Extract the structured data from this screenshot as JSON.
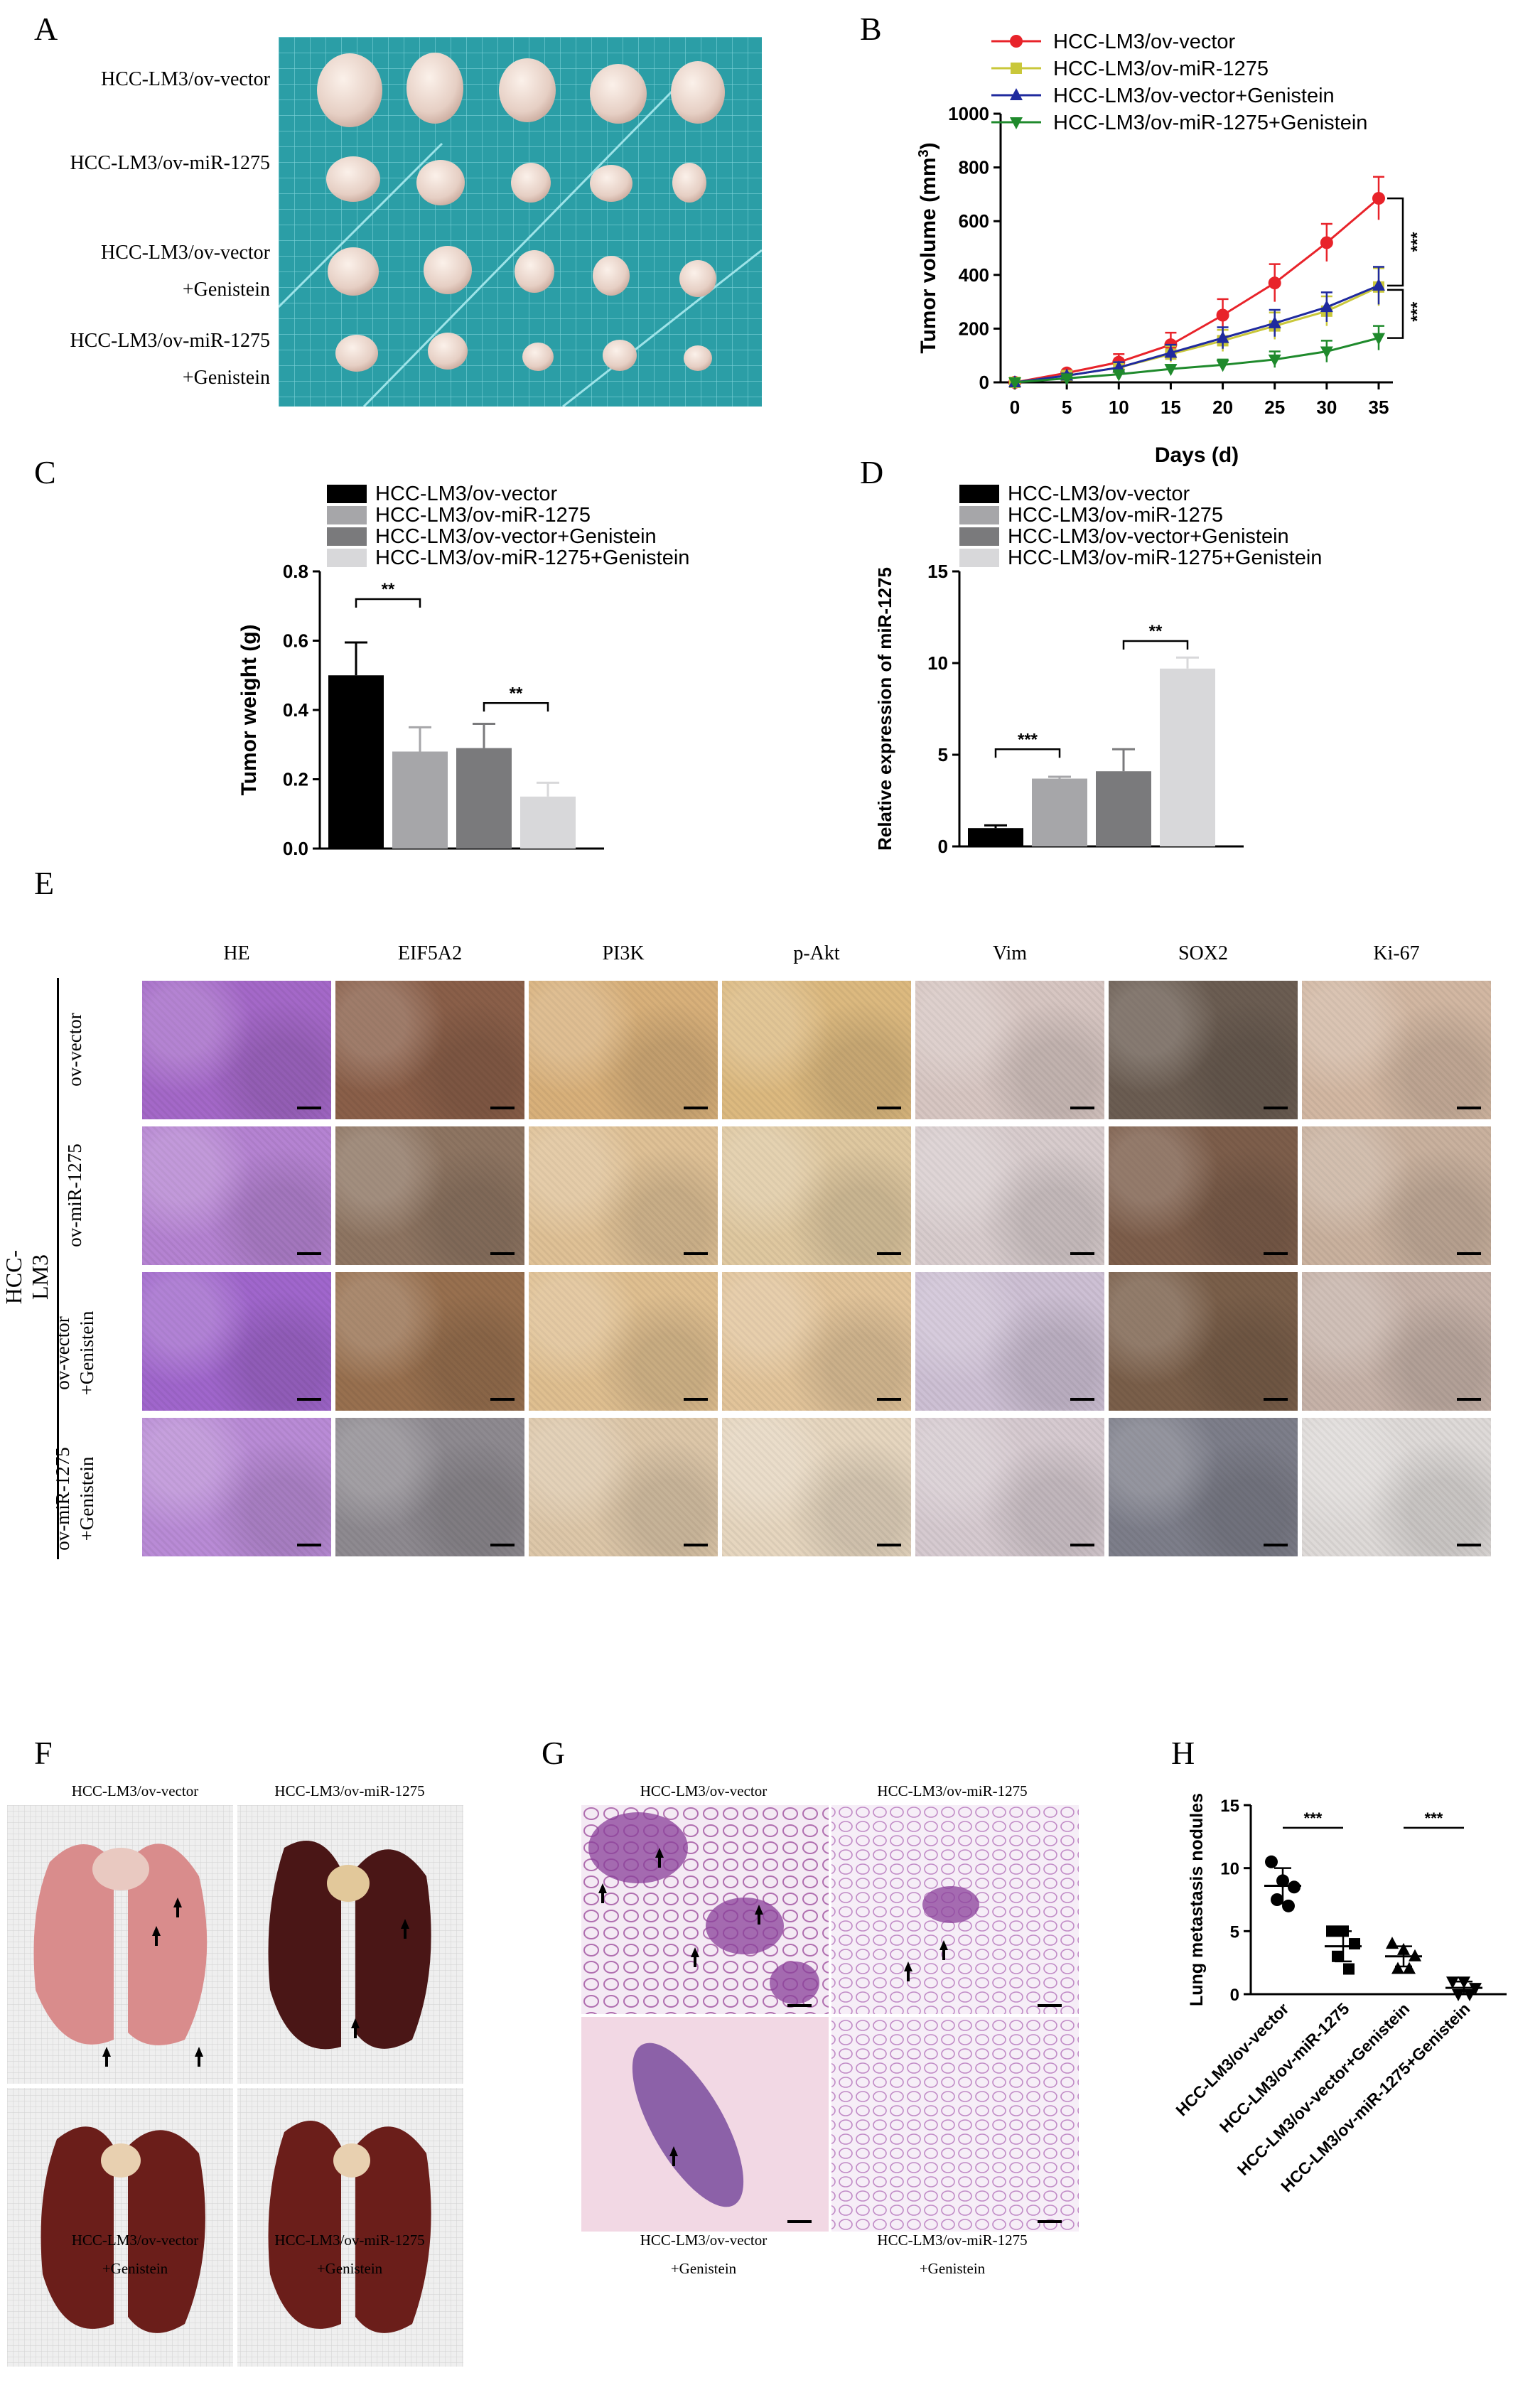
{
  "panels": {
    "A": "A",
    "B": "B",
    "C": "C",
    "D": "D",
    "E": "E",
    "F": "F",
    "G": "G",
    "H": "H"
  },
  "panelA": {
    "labels": [
      "HCC-LM3/ov-vector",
      "HCC-LM3/ov-miR-1275",
      "HCC-LM3/ov-vector",
      "+Genistein",
      "HCC-LM3/ov-miR-1275",
      "+Genistein"
    ]
  },
  "colors": {
    "vector": "#e8232a",
    "mir": "#c9c73a",
    "vector_gen": "#1f2a9e",
    "mir_gen": "#1f8a2c",
    "bar1": "#000000",
    "bar2": "#a6a6a9",
    "bar3": "#7a7a7c",
    "bar4": "#d8d8da"
  },
  "chart_data": [
    {
      "panel": "B",
      "type": "line",
      "xlabel": "Days (d)",
      "ylabel": "Tumor volume (mm3)",
      "x": [
        0,
        5,
        10,
        15,
        20,
        25,
        30,
        35
      ],
      "xticks": [
        "0",
        "5",
        "10",
        "15",
        "20",
        "25",
        "30",
        "35"
      ],
      "yticks": [
        "0",
        "200",
        "400",
        "600",
        "800",
        "1000"
      ],
      "ylim": [
        0,
        1000
      ],
      "legend_position": "top",
      "series": [
        {
          "name": "HCC-LM3/ov-vector",
          "values": [
            0,
            35,
            75,
            140,
            250,
            370,
            520,
            685
          ],
          "errors": [
            0,
            10,
            30,
            45,
            60,
            70,
            70,
            80
          ]
        },
        {
          "name": "HCC-LM3/ov-miR-1275",
          "values": [
            0,
            25,
            55,
            105,
            155,
            210,
            265,
            355
          ],
          "errors": [
            0,
            8,
            20,
            30,
            40,
            50,
            55,
            70
          ]
        },
        {
          "name": "HCC-LM3/ov-vector+Genistein",
          "values": [
            0,
            25,
            55,
            110,
            165,
            220,
            280,
            360
          ],
          "errors": [
            0,
            8,
            20,
            30,
            40,
            50,
            55,
            70
          ]
        },
        {
          "name": "HCC-LM3/ov-miR-1275+Genistein",
          "values": [
            0,
            15,
            30,
            50,
            65,
            85,
            115,
            165
          ],
          "errors": [
            0,
            5,
            10,
            15,
            20,
            30,
            40,
            45
          ]
        }
      ],
      "annotations": [
        "***",
        "***"
      ]
    },
    {
      "panel": "C",
      "type": "bar",
      "ylabel": "Tumor weight (g)",
      "yticks": [
        "0.0",
        "0.2",
        "0.4",
        "0.6",
        "0.8"
      ],
      "ylim": [
        0,
        0.8
      ],
      "categories": [
        "HCC-LM3/ov-vector",
        "HCC-LM3/ov-miR-1275",
        "HCC-LM3/ov-vector+Genistein",
        "HCC-LM3/ov-miR-1275+Genistein"
      ],
      "values": [
        0.5,
        0.28,
        0.29,
        0.15
      ],
      "errors": [
        0.095,
        0.07,
        0.07,
        0.04
      ],
      "annotations": [
        "**",
        "**"
      ]
    },
    {
      "panel": "D",
      "type": "bar",
      "ylabel": "Relative expression of  miR-1275",
      "yticks": [
        "0",
        "5",
        "10",
        "15"
      ],
      "ylim": [
        0,
        15
      ],
      "categories": [
        "HCC-LM3/ov-vector",
        "HCC-LM3/ov-miR-1275",
        "HCC-LM3/ov-vector+Genistein",
        "HCC-LM3/ov-miR-1275+Genistein"
      ],
      "values": [
        1.0,
        3.7,
        4.1,
        9.7
      ],
      "errors": [
        0.15,
        0.1,
        1.2,
        0.6
      ],
      "annotations": [
        "***",
        "**"
      ]
    },
    {
      "panel": "H",
      "type": "scatter",
      "ylabel": "Lung metastasis nodules",
      "yticks": [
        "0",
        "5",
        "10",
        "15"
      ],
      "ylim": [
        0,
        15
      ],
      "categories": [
        "HCC-LM3/ov-vector",
        "HCC-LM3/ov-miR-1275",
        "HCC-LM3/ov-vector+Genistein",
        "HCC-LM3/ov-miR-1275+Genistein"
      ],
      "points": [
        [
          10.5,
          9,
          8.5,
          7.5,
          7
        ],
        [
          5,
          5,
          4,
          3,
          2
        ],
        [
          4,
          3.5,
          3,
          2,
          2
        ],
        [
          1,
          1,
          0.5,
          0,
          0
        ]
      ],
      "means": [
        8.6,
        3.8,
        3.0,
        0.5
      ],
      "sd": [
        1.4,
        1.2,
        0.8,
        0.5
      ],
      "annotations": [
        "***",
        "***"
      ]
    }
  ],
  "legend": {
    "items": [
      "HCC-LM3/ov-vector",
      "HCC-LM3/ov-miR-1275",
      "HCC-LM3/ov-vector+Genistein",
      "HCC-LM3/ov-miR-1275+Genistein"
    ]
  },
  "panelE": {
    "columns": [
      "HE",
      "EIF5A2",
      "PI3K",
      "p-Akt",
      "Vim",
      "SOX2",
      "Ki-67"
    ],
    "group_label": "HCC-LM3",
    "rows": [
      {
        "l1": "ov-vector",
        "l2": ""
      },
      {
        "l1": "ov-miR-1275",
        "l2": ""
      },
      {
        "l1": "ov-vector",
        "l2": "+Genistein"
      },
      {
        "l1": "ov-miR-1275",
        "l2": "+Genistein"
      }
    ]
  },
  "panelF": {
    "top_left": "HCC-LM3/ov-vector",
    "top_right": "HCC-LM3/ov-miR-1275",
    "bottom_left_1": "HCC-LM3/ov-vector",
    "bottom_left_2": "+Genistein",
    "bottom_right_1": "HCC-LM3/ov-miR-1275",
    "bottom_right_2": "+Genistein"
  },
  "panelG": {
    "top_left": "HCC-LM3/ov-vector",
    "top_right": "HCC-LM3/ov-miR-1275",
    "bottom_left_1": "HCC-LM3/ov-vector",
    "bottom_left_2": "+Genistein",
    "bottom_right_1": "HCC-LM3/ov-miR-1275",
    "bottom_right_2": "+Genistein"
  }
}
